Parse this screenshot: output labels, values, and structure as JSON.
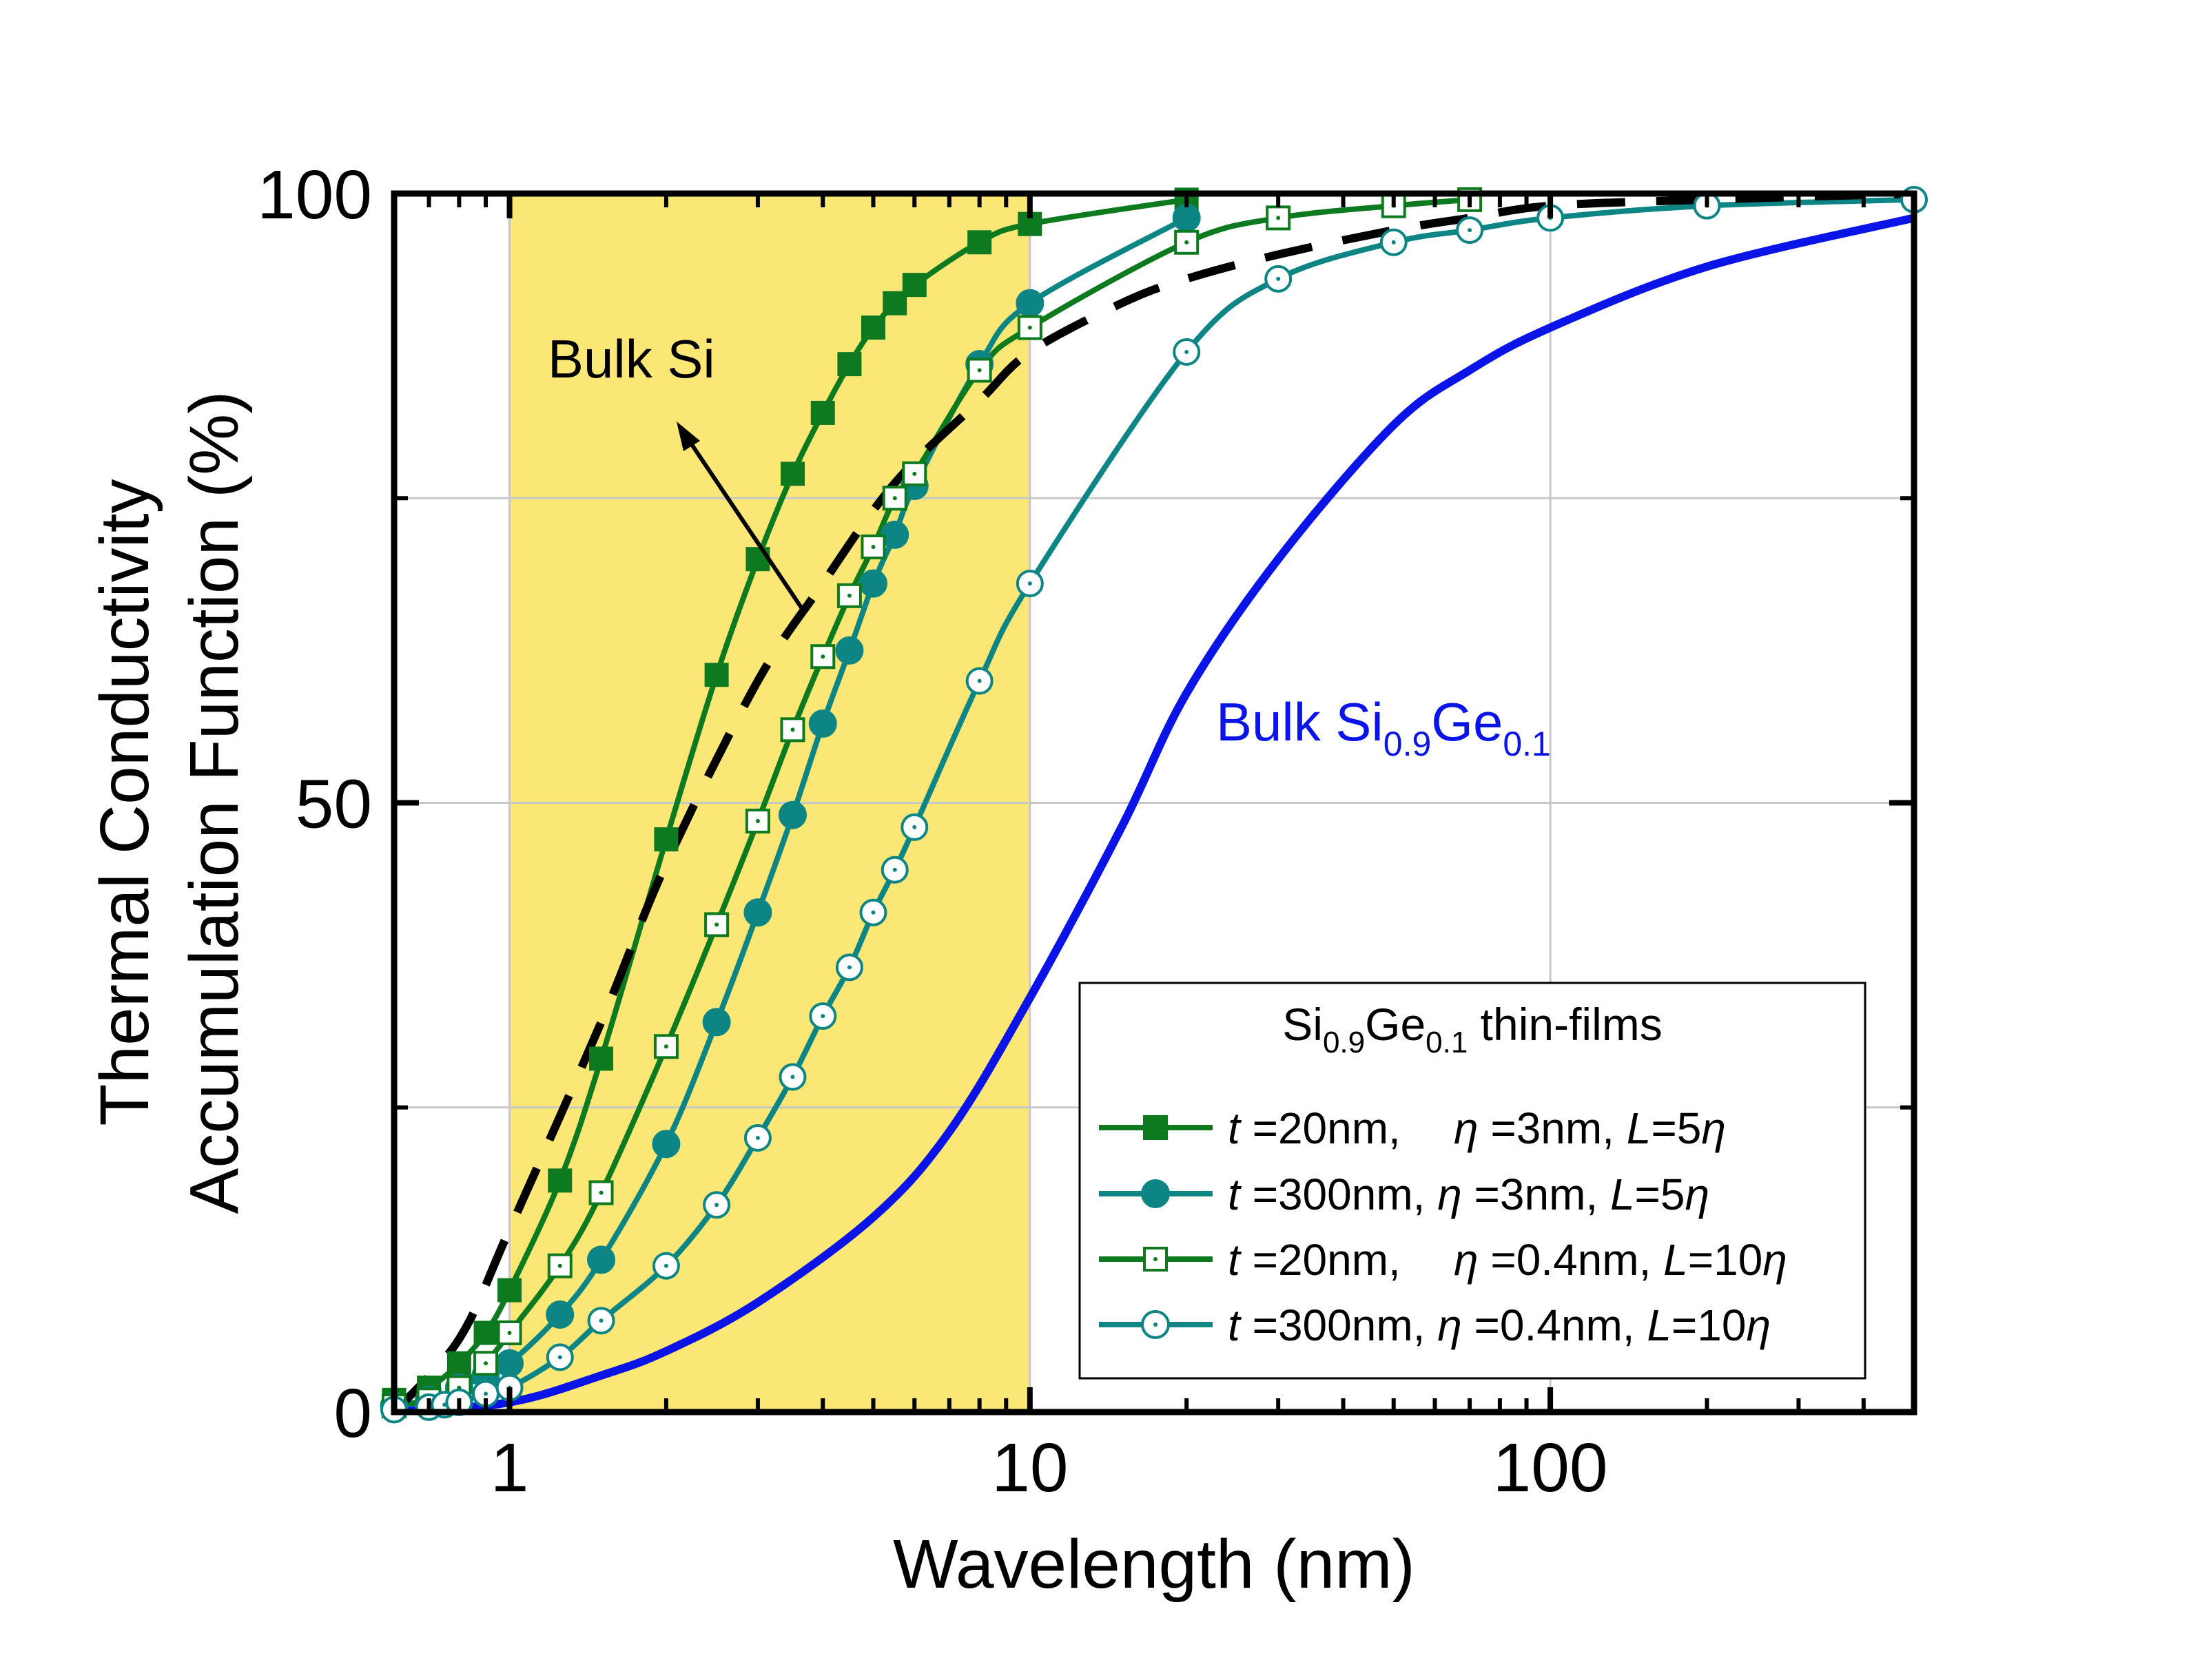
{
  "chart_data": {
    "type": "line",
    "xlabel": "Wavelength (nm)",
    "ylabel_line1": "Thermal Conductivity",
    "ylabel_line2": "Accumulation Function (%)",
    "xscale": "log",
    "xlim": [
      0.6,
      500
    ],
    "ylim": [
      0,
      100
    ],
    "x_tick_labels": [
      "1",
      "10",
      "100"
    ],
    "y_tick_labels": [
      "0",
      "50",
      "100"
    ],
    "grid": true,
    "highlight_band": {
      "x": [
        1,
        10
      ],
      "color": "#fbe776"
    },
    "annotations": [
      {
        "text": "Bulk Si",
        "color": "#000000"
      },
      {
        "text_main": "Bulk Si",
        "sub1": "0.9",
        "mid": "Ge",
        "sub2": "0.1",
        "color": "#0a14e6"
      }
    ],
    "legend": {
      "placement": "bottom-right",
      "title_main": "Si",
      "title_sub1": "0.9",
      "title_mid": "Ge",
      "title_sub2": "0.1",
      "title_tail": " thin-films"
    },
    "series": [
      {
        "name": "Bulk Si",
        "color": "#000000",
        "style": "dashed",
        "marker": "none",
        "x": [
          0.6,
          0.8,
          1,
          1.5,
          2,
          3,
          4,
          5,
          6,
          8,
          10,
          15,
          20,
          30,
          50,
          70,
          100,
          200,
          500
        ],
        "y": [
          0,
          6,
          15,
          32,
          45,
          60,
          68,
          74,
          78,
          83,
          87,
          91,
          93,
          95,
          97,
          98,
          99,
          99.5,
          100
        ]
      },
      {
        "name": "Bulk Si0.9Ge0.1",
        "color": "#0a14e6",
        "style": "solid",
        "marker": "none",
        "x": [
          0.6,
          1,
          1.5,
          2,
          3,
          5,
          7,
          10,
          15,
          20,
          30,
          50,
          70,
          100,
          200,
          500
        ],
        "y": [
          0,
          0.8,
          3,
          5,
          9,
          16,
          23,
          34,
          48,
          59,
          70,
          81,
          85.5,
          89,
          94,
          98
        ]
      },
      {
        "label_t": "t",
        "label_t_val": " =20nm,",
        "label_eta_val": " =3nm, ",
        "label_L": "L",
        "label_L_val": "=5",
        "color": "#0e7a1f",
        "style": "solid",
        "marker": "filled-square",
        "x": [
          0.6,
          0.7,
          0.8,
          0.9,
          1,
          1.25,
          1.5,
          2,
          2.5,
          3,
          3.5,
          4,
          4.5,
          5,
          5.5,
          6,
          8,
          10,
          20
        ],
        "y": [
          1,
          2,
          4,
          6.5,
          10,
          19,
          29,
          47,
          60.5,
          70,
          77,
          82,
          86,
          89,
          91,
          92.5,
          96,
          97.5,
          99.5
        ]
      },
      {
        "label_t": "t",
        "label_t_val": " =300nm,",
        "label_eta_val": " =3nm, ",
        "label_L": "L",
        "label_L_val": "=5",
        "color": "#0e8585",
        "style": "solid",
        "marker": "filled-circle",
        "x": [
          0.6,
          0.7,
          0.8,
          0.9,
          1,
          1.25,
          1.5,
          2,
          2.5,
          3,
          3.5,
          4,
          4.5,
          5,
          5.5,
          6,
          8,
          10,
          20
        ],
        "y": [
          0.5,
          1,
          2,
          3,
          4,
          8,
          12.5,
          22,
          32,
          41,
          49,
          56.5,
          62.5,
          68,
          72,
          76,
          86,
          91,
          98
        ]
      },
      {
        "label_t": "t",
        "label_t_val": " =20nm,",
        "label_eta_val": " =0.4nm, ",
        "label_L": "L",
        "label_L_val": "=10",
        "color": "#0e7a1f",
        "style": "solid",
        "marker": "open-square",
        "x": [
          0.6,
          0.7,
          0.8,
          0.9,
          1,
          1.25,
          1.5,
          2,
          2.5,
          3,
          3.5,
          4,
          4.5,
          5,
          5.5,
          6,
          8,
          10,
          20,
          30,
          50,
          70
        ],
        "y": [
          0.5,
          1,
          2,
          4,
          6.5,
          12,
          18,
          30,
          40,
          48.5,
          56,
          62,
          67,
          71,
          75,
          77,
          85.5,
          89,
          96,
          98,
          99,
          99.5
        ]
      },
      {
        "label_t": "t",
        "label_t_val": " =300nm,",
        "label_eta_val": " =0.4nm, ",
        "label_L": "L",
        "label_L_val": "=10",
        "color": "#0e8585",
        "style": "solid",
        "marker": "open-circle",
        "x": [
          0.6,
          0.7,
          0.75,
          0.8,
          0.9,
          1,
          1.25,
          1.5,
          2,
          2.5,
          3,
          3.5,
          4,
          4.5,
          5,
          5.5,
          6,
          8,
          10,
          20,
          30,
          50,
          70,
          100,
          200,
          500
        ],
        "y": [
          0.2,
          0.4,
          0.6,
          0.8,
          1.5,
          2,
          4.5,
          7.5,
          12,
          17,
          22.5,
          27.5,
          32.5,
          36.5,
          41,
          44.5,
          48,
          60,
          68,
          87,
          93,
          96,
          97,
          98,
          99,
          99.5
        ]
      }
    ]
  }
}
